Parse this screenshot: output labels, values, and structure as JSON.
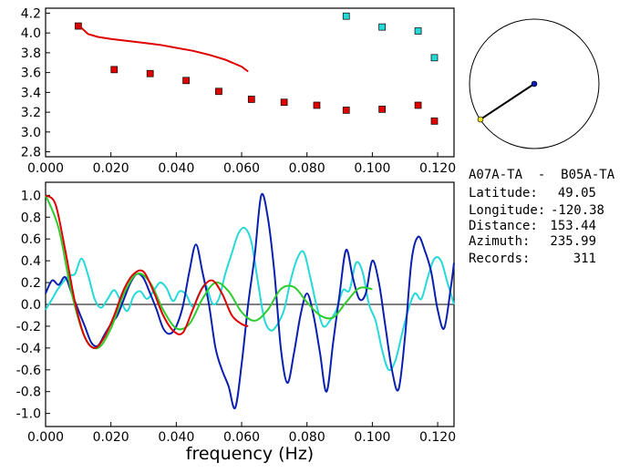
{
  "station_pair": "A07A-TA  -  B05A-TA",
  "info_rows": [
    {
      "label": "Latitude:",
      "value": "49.05"
    },
    {
      "label": "Longitude:",
      "value": "-120.38"
    },
    {
      "label": "Distance:",
      "value": "153.44"
    },
    {
      "label": "Azimuth:",
      "value": "235.99"
    },
    {
      "label": "Records:",
      "value": "311"
    }
  ],
  "colors": {
    "red": "#e00000",
    "cyan": "#26d9d9",
    "blue": "#0a1fb0",
    "green": "#2ccc2c",
    "axis": "#000000"
  },
  "chart_data": [
    {
      "type": "scatter",
      "xlim": [
        0.0,
        0.125
      ],
      "ylim": [
        2.75,
        4.25
      ],
      "x_ticks": [
        "0.000",
        "0.020",
        "0.040",
        "0.060",
        "0.080",
        "0.100",
        "0.120"
      ],
      "y_ticks": [
        "2.8",
        "3.0",
        "3.2",
        "3.4",
        "3.6",
        "3.8",
        "4.0",
        "4.2"
      ],
      "series": [
        {
          "color": "red",
          "points": [
            [
              0.01,
              4.07
            ],
            [
              0.021,
              3.63
            ],
            [
              0.032,
              3.59
            ],
            [
              0.043,
              3.52
            ],
            [
              0.053,
              3.41
            ],
            [
              0.063,
              3.33
            ],
            [
              0.073,
              3.3
            ],
            [
              0.083,
              3.27
            ],
            [
              0.092,
              3.22
            ],
            [
              0.103,
              3.23
            ],
            [
              0.114,
              3.27
            ],
            [
              0.119,
              3.11
            ]
          ]
        },
        {
          "color": "cyan",
          "points": [
            [
              0.092,
              4.17
            ],
            [
              0.103,
              4.06
            ],
            [
              0.114,
              4.02
            ],
            [
              0.119,
              3.75
            ]
          ]
        },
        {
          "color": "red",
          "style": "line",
          "points": [
            [
              0.011,
              4.05
            ],
            [
              0.013,
              3.99
            ],
            [
              0.016,
              3.96
            ],
            [
              0.02,
              3.94
            ],
            [
              0.025,
              3.92
            ],
            [
              0.03,
              3.9
            ],
            [
              0.035,
              3.88
            ],
            [
              0.04,
              3.85
            ],
            [
              0.045,
              3.82
            ],
            [
              0.05,
              3.78
            ],
            [
              0.055,
              3.73
            ],
            [
              0.06,
              3.66
            ],
            [
              0.062,
              3.61
            ]
          ]
        }
      ]
    },
    {
      "type": "line",
      "xlim": [
        0.0,
        0.125
      ],
      "ylim": [
        -1.12,
        1.12
      ],
      "xlabel": "frequency (Hz)",
      "x_ticks": [
        "0.000",
        "0.020",
        "0.040",
        "0.060",
        "0.080",
        "0.100",
        "0.120"
      ],
      "y_ticks": [
        "1.0",
        "0.8",
        "0.6",
        "0.4",
        "0.2",
        "0.0",
        "-0.2",
        "-0.4",
        "-0.6",
        "-0.8",
        "-1.0"
      ],
      "series": [
        {
          "color": "cyan",
          "x": [
            0.0,
            0.002,
            0.004,
            0.007,
            0.009,
            0.011,
            0.013,
            0.015,
            0.017,
            0.019,
            0.021,
            0.023,
            0.025,
            0.027,
            0.029,
            0.031,
            0.033,
            0.035,
            0.037,
            0.039,
            0.041,
            0.043,
            0.045,
            0.047,
            0.049,
            0.051,
            0.053,
            0.055,
            0.057,
            0.059,
            0.061,
            0.063,
            0.065,
            0.067,
            0.069,
            0.071,
            0.073,
            0.075,
            0.077,
            0.079,
            0.081,
            0.083,
            0.085,
            0.087,
            0.089,
            0.091,
            0.093,
            0.095,
            0.097,
            0.099,
            0.101,
            0.103,
            0.105,
            0.107,
            0.109,
            0.111,
            0.113,
            0.115,
            0.117,
            0.119,
            0.121,
            0.123,
            0.125
          ],
          "y": [
            -0.05,
            0.05,
            0.15,
            0.26,
            0.28,
            0.42,
            0.27,
            0.05,
            -0.03,
            0.05,
            0.13,
            0.03,
            -0.06,
            0.08,
            0.12,
            0.05,
            0.12,
            0.2,
            0.15,
            0.03,
            0.12,
            0.09,
            -0.02,
            0.1,
            0.18,
            0.01,
            0.05,
            0.28,
            0.47,
            0.65,
            0.7,
            0.57,
            0.2,
            -0.14,
            -0.24,
            -0.18,
            -0.05,
            0.22,
            0.42,
            0.48,
            0.25,
            -0.02,
            -0.2,
            -0.15,
            -0.05,
            0.13,
            0.13,
            0.38,
            0.3,
            0.0,
            -0.15,
            -0.42,
            -0.6,
            -0.52,
            -0.28,
            -0.05,
            0.1,
            0.05,
            0.25,
            0.42,
            0.4,
            0.2,
            0.0
          ]
        },
        {
          "color": "blue",
          "x": [
            0.0,
            0.002,
            0.004,
            0.006,
            0.008,
            0.01,
            0.012,
            0.014,
            0.016,
            0.018,
            0.02,
            0.022,
            0.024,
            0.026,
            0.028,
            0.03,
            0.032,
            0.034,
            0.036,
            0.038,
            0.04,
            0.042,
            0.044,
            0.046,
            0.048,
            0.05,
            0.052,
            0.054,
            0.056,
            0.058,
            0.06,
            0.062,
            0.064,
            0.066,
            0.068,
            0.07,
            0.072,
            0.074,
            0.076,
            0.078,
            0.08,
            0.082,
            0.084,
            0.086,
            0.088,
            0.09,
            0.092,
            0.094,
            0.096,
            0.098,
            0.1,
            0.102,
            0.104,
            0.106,
            0.108,
            0.11,
            0.112,
            0.114,
            0.116,
            0.118,
            0.12,
            0.122,
            0.124,
            0.125
          ],
          "y": [
            0.1,
            0.22,
            0.18,
            0.25,
            0.1,
            -0.05,
            -0.2,
            -0.35,
            -0.38,
            -0.28,
            -0.18,
            -0.1,
            0.05,
            0.2,
            0.28,
            0.24,
            0.1,
            -0.05,
            -0.22,
            -0.27,
            -0.2,
            -0.02,
            0.3,
            0.55,
            0.3,
            0.0,
            -0.4,
            -0.6,
            -0.75,
            -0.95,
            -0.55,
            0.0,
            0.45,
            1.0,
            0.8,
            0.3,
            -0.4,
            -0.72,
            -0.45,
            -0.1,
            0.1,
            -0.1,
            -0.45,
            -0.8,
            -0.35,
            0.1,
            0.5,
            0.25,
            0.05,
            0.1,
            0.4,
            0.2,
            -0.2,
            -0.6,
            -0.78,
            -0.3,
            0.4,
            0.62,
            0.5,
            0.3,
            -0.05,
            -0.22,
            0.15,
            0.38
          ]
        },
        {
          "color": "green",
          "x": [
            0.0,
            0.004,
            0.008,
            0.012,
            0.016,
            0.02,
            0.024,
            0.028,
            0.032,
            0.036,
            0.04,
            0.044,
            0.048,
            0.052,
            0.056,
            0.06,
            0.064,
            0.068,
            0.072,
            0.076,
            0.08,
            0.084,
            0.088,
            0.092,
            0.096,
            0.1
          ],
          "y": [
            1.0,
            0.7,
            0.1,
            -0.3,
            -0.4,
            -0.22,
            0.1,
            0.28,
            0.2,
            -0.05,
            -0.22,
            -0.18,
            0.05,
            0.2,
            0.12,
            -0.07,
            -0.15,
            -0.05,
            0.14,
            0.16,
            0.02,
            -0.1,
            -0.12,
            0.02,
            0.15,
            0.14
          ]
        },
        {
          "color": "red",
          "x": [
            0.0,
            0.003,
            0.006,
            0.009,
            0.012,
            0.015,
            0.018,
            0.021,
            0.024,
            0.027,
            0.03,
            0.033,
            0.036,
            0.039,
            0.042,
            0.045,
            0.048,
            0.051,
            0.054,
            0.057,
            0.06,
            0.062
          ],
          "y": [
            1.0,
            0.92,
            0.5,
            0.02,
            -0.3,
            -0.4,
            -0.3,
            -0.1,
            0.14,
            0.28,
            0.3,
            0.12,
            -0.1,
            -0.24,
            -0.26,
            -0.05,
            0.15,
            0.22,
            0.1,
            -0.1,
            -0.18,
            -0.2
          ]
        }
      ]
    }
  ]
}
